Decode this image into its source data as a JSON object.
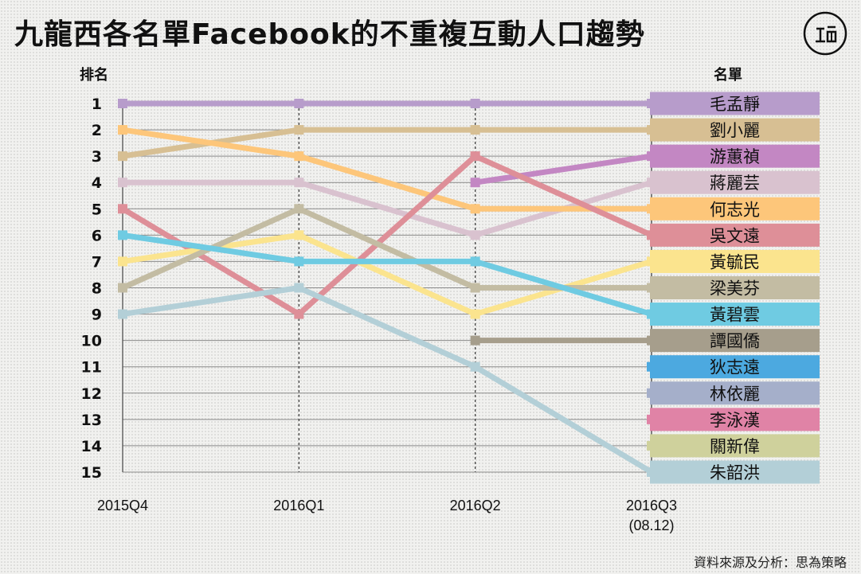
{
  "page": {
    "title": "九龍西各名單Facebook的不重複互動人口趨勢",
    "source": "資料來源及分析：思為策略",
    "logo_icon": "theinitium-logo-icon"
  },
  "chart_data": {
    "type": "line",
    "title": "九龍西各名單Facebook的不重複互動人口趨勢",
    "ylabel": "排名",
    "legend_title": "名單",
    "x": [
      "2015Q4",
      "2016Q1",
      "2016Q2",
      "2016Q3"
    ],
    "x_sublabels": [
      "",
      "",
      "",
      "(08.12)"
    ],
    "ylim": [
      1,
      15
    ],
    "y_inverted": true,
    "y_ticks": [
      1,
      2,
      3,
      4,
      5,
      6,
      7,
      8,
      9,
      10,
      11,
      12,
      13,
      14,
      15
    ],
    "grid": true,
    "legend_position": "right",
    "series": [
      {
        "name": "毛孟靜",
        "color": "#b79ccb",
        "values": [
          1,
          1,
          1,
          1
        ]
      },
      {
        "name": "劉小麗",
        "color": "#d7bf93",
        "values": [
          3,
          2,
          2,
          2
        ]
      },
      {
        "name": "游蕙禎",
        "color": "#c387c3",
        "values": [
          null,
          null,
          4,
          3
        ]
      },
      {
        "name": "蔣麗芸",
        "color": "#d9c2cf",
        "values": [
          4,
          4,
          6,
          4
        ]
      },
      {
        "name": "何志光",
        "color": "#fdc67a",
        "values": [
          2,
          3,
          5,
          5
        ]
      },
      {
        "name": "吳文遠",
        "color": "#de8f98",
        "values": [
          5,
          9,
          3,
          6
        ]
      },
      {
        "name": "黃毓民",
        "color": "#fbe48e",
        "values": [
          7,
          6,
          9,
          7
        ]
      },
      {
        "name": "梁美芬",
        "color": "#c3bca3",
        "values": [
          8,
          5,
          8,
          8
        ]
      },
      {
        "name": "黃碧雲",
        "color": "#6fcbe2",
        "values": [
          6,
          7,
          7,
          9
        ]
      },
      {
        "name": "譚國僑",
        "color": "#a69e8c",
        "values": [
          null,
          null,
          10,
          10
        ]
      },
      {
        "name": "狄志遠",
        "color": "#4ca9e0",
        "values": [
          null,
          null,
          null,
          11
        ]
      },
      {
        "name": "林依麗",
        "color": "#a5afca",
        "values": [
          null,
          null,
          null,
          12
        ]
      },
      {
        "name": "李泳漢",
        "color": "#e083a6",
        "values": [
          null,
          null,
          null,
          13
        ]
      },
      {
        "name": "關新偉",
        "color": "#cfd19c",
        "values": [
          null,
          null,
          null,
          14
        ]
      },
      {
        "name": "朱韶洪",
        "color": "#b3cfd7",
        "values": [
          9,
          8,
          11,
          15
        ]
      }
    ]
  }
}
